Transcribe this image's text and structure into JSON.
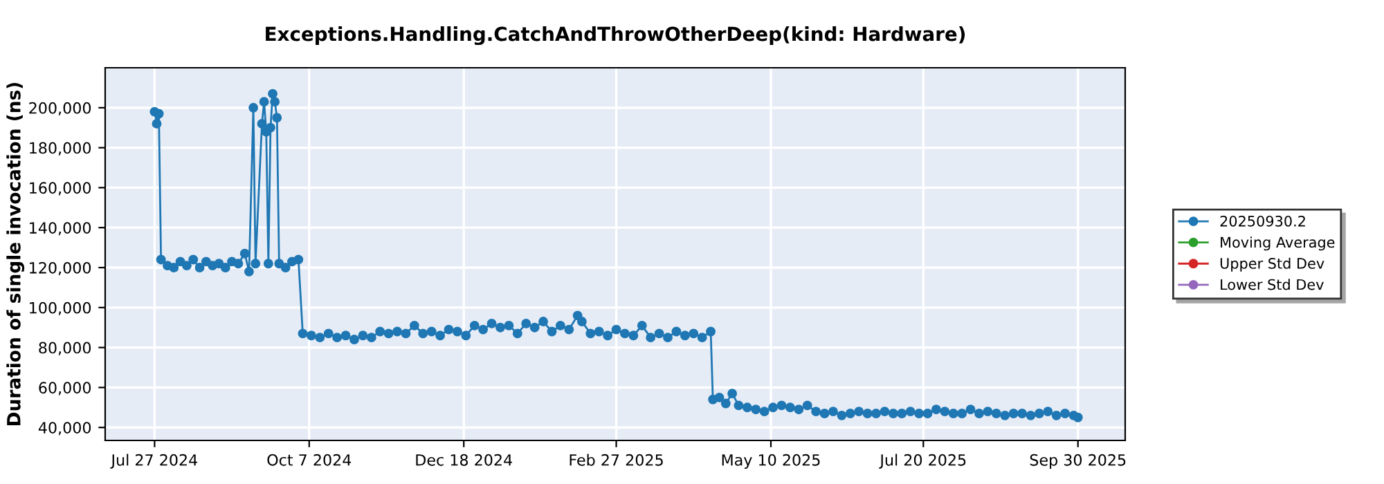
{
  "chart_data": {
    "type": "line",
    "title": "Exceptions.Handling.CatchAndThrowOtherDeep(kind: Hardware)",
    "ylabel": "Duration of single invocation (ns)",
    "xlim": [
      "2024-07-04",
      "2025-10-22"
    ],
    "xticks": [
      {
        "value": "2024-07-27",
        "label": "Jul 27 2024"
      },
      {
        "value": "2024-10-07",
        "label": "Oct 7 2024"
      },
      {
        "value": "2024-12-18",
        "label": "Dec 18 2024"
      },
      {
        "value": "2025-02-27",
        "label": "Feb 27 2025"
      },
      {
        "value": "2025-05-10",
        "label": "May 10 2025"
      },
      {
        "value": "2025-07-20",
        "label": "Jul 20 2025"
      },
      {
        "value": "2025-09-30",
        "label": "Sep 30 2025"
      }
    ],
    "ylim": [
      33500,
      220000
    ],
    "yticks": [
      {
        "value": 40000,
        "label": "40,000"
      },
      {
        "value": 60000,
        "label": "60,000"
      },
      {
        "value": 80000,
        "label": "80,000"
      },
      {
        "value": 100000,
        "label": "100,000"
      },
      {
        "value": 120000,
        "label": "120,000"
      },
      {
        "value": 140000,
        "label": "140,000"
      },
      {
        "value": 160000,
        "label": "160,000"
      },
      {
        "value": 180000,
        "label": "180,000"
      },
      {
        "value": 200000,
        "label": "200,000"
      }
    ],
    "grid": true,
    "legend": "right",
    "marker": "circle",
    "line_style": "solid",
    "series": [
      {
        "name": "20250930.2",
        "color": "#1f77b4",
        "x": [
          "2024-07-27",
          "2024-07-28",
          "2024-07-29",
          "2024-07-30",
          "2024-08-02",
          "2024-08-05",
          "2024-08-08",
          "2024-08-11",
          "2024-08-14",
          "2024-08-17",
          "2024-08-20",
          "2024-08-23",
          "2024-08-26",
          "2024-08-29",
          "2024-09-01",
          "2024-09-04",
          "2024-09-07",
          "2024-09-09",
          "2024-09-11",
          "2024-09-12",
          "2024-09-15",
          "2024-09-16",
          "2024-09-17",
          "2024-09-18",
          "2024-09-19",
          "2024-09-20",
          "2024-09-21",
          "2024-09-22",
          "2024-09-23",
          "2024-09-26",
          "2024-09-29",
          "2024-10-02",
          "2024-10-04",
          "2024-10-08",
          "2024-10-12",
          "2024-10-16",
          "2024-10-20",
          "2024-10-24",
          "2024-10-28",
          "2024-11-01",
          "2024-11-05",
          "2024-11-09",
          "2024-11-13",
          "2024-11-17",
          "2024-11-21",
          "2024-11-25",
          "2024-11-29",
          "2024-12-03",
          "2024-12-07",
          "2024-12-11",
          "2024-12-15",
          "2024-12-19",
          "2024-12-23",
          "2024-12-27",
          "2024-12-31",
          "2025-01-04",
          "2025-01-08",
          "2025-01-12",
          "2025-01-16",
          "2025-01-20",
          "2025-01-24",
          "2025-01-28",
          "2025-02-01",
          "2025-02-05",
          "2025-02-09",
          "2025-02-11",
          "2025-02-15",
          "2025-02-19",
          "2025-02-23",
          "2025-02-27",
          "2025-03-03",
          "2025-03-07",
          "2025-03-11",
          "2025-03-15",
          "2025-03-19",
          "2025-03-23",
          "2025-03-27",
          "2025-03-31",
          "2025-04-04",
          "2025-04-08",
          "2025-04-12",
          "2025-04-13",
          "2025-04-16",
          "2025-04-19",
          "2025-04-22",
          "2025-04-25",
          "2025-04-29",
          "2025-05-03",
          "2025-05-07",
          "2025-05-11",
          "2025-05-15",
          "2025-05-19",
          "2025-05-23",
          "2025-05-27",
          "2025-05-31",
          "2025-06-04",
          "2025-06-08",
          "2025-06-12",
          "2025-06-16",
          "2025-06-20",
          "2025-06-24",
          "2025-06-28",
          "2025-07-02",
          "2025-07-06",
          "2025-07-10",
          "2025-07-14",
          "2025-07-18",
          "2025-07-22",
          "2025-07-26",
          "2025-07-30",
          "2025-08-03",
          "2025-08-07",
          "2025-08-11",
          "2025-08-15",
          "2025-08-19",
          "2025-08-23",
          "2025-08-27",
          "2025-08-31",
          "2025-09-04",
          "2025-09-08",
          "2025-09-12",
          "2025-09-16",
          "2025-09-20",
          "2025-09-24",
          "2025-09-28",
          "2025-09-30"
        ],
        "values": [
          198000,
          192000,
          197000,
          124000,
          121000,
          120000,
          123000,
          121000,
          124000,
          120000,
          123000,
          121000,
          122000,
          120000,
          123000,
          122000,
          127000,
          118000,
          200000,
          122000,
          192000,
          203000,
          188000,
          122000,
          190000,
          207000,
          203000,
          195000,
          122000,
          120000,
          123000,
          124000,
          87000,
          86000,
          85000,
          87000,
          85000,
          86000,
          84000,
          86000,
          85000,
          88000,
          87000,
          88000,
          87000,
          91000,
          87000,
          88000,
          86000,
          89000,
          88000,
          86000,
          91000,
          89000,
          92000,
          90000,
          91000,
          87000,
          92000,
          90000,
          93000,
          88000,
          91000,
          89000,
          96000,
          93000,
          87000,
          88000,
          86000,
          89000,
          87000,
          86000,
          91000,
          85000,
          87000,
          85000,
          88000,
          86000,
          87000,
          85000,
          88000,
          54000,
          55000,
          52000,
          57000,
          51000,
          50000,
          49000,
          48000,
          50000,
          51000,
          50000,
          49000,
          51000,
          48000,
          47000,
          48000,
          46000,
          47000,
          48000,
          47000,
          47000,
          48000,
          47000,
          47000,
          48000,
          47000,
          47000,
          49000,
          48000,
          47000,
          47000,
          49000,
          47000,
          48000,
          47000,
          46000,
          47000,
          47000,
          46000,
          47000,
          48000,
          46000,
          47000,
          46000,
          45000
        ]
      },
      {
        "name": "Moving Average",
        "color": "#2ca02c"
      },
      {
        "name": "Upper Std Dev",
        "color": "#d62728"
      },
      {
        "name": "Lower Std Dev",
        "color": "#9467bd"
      }
    ]
  }
}
